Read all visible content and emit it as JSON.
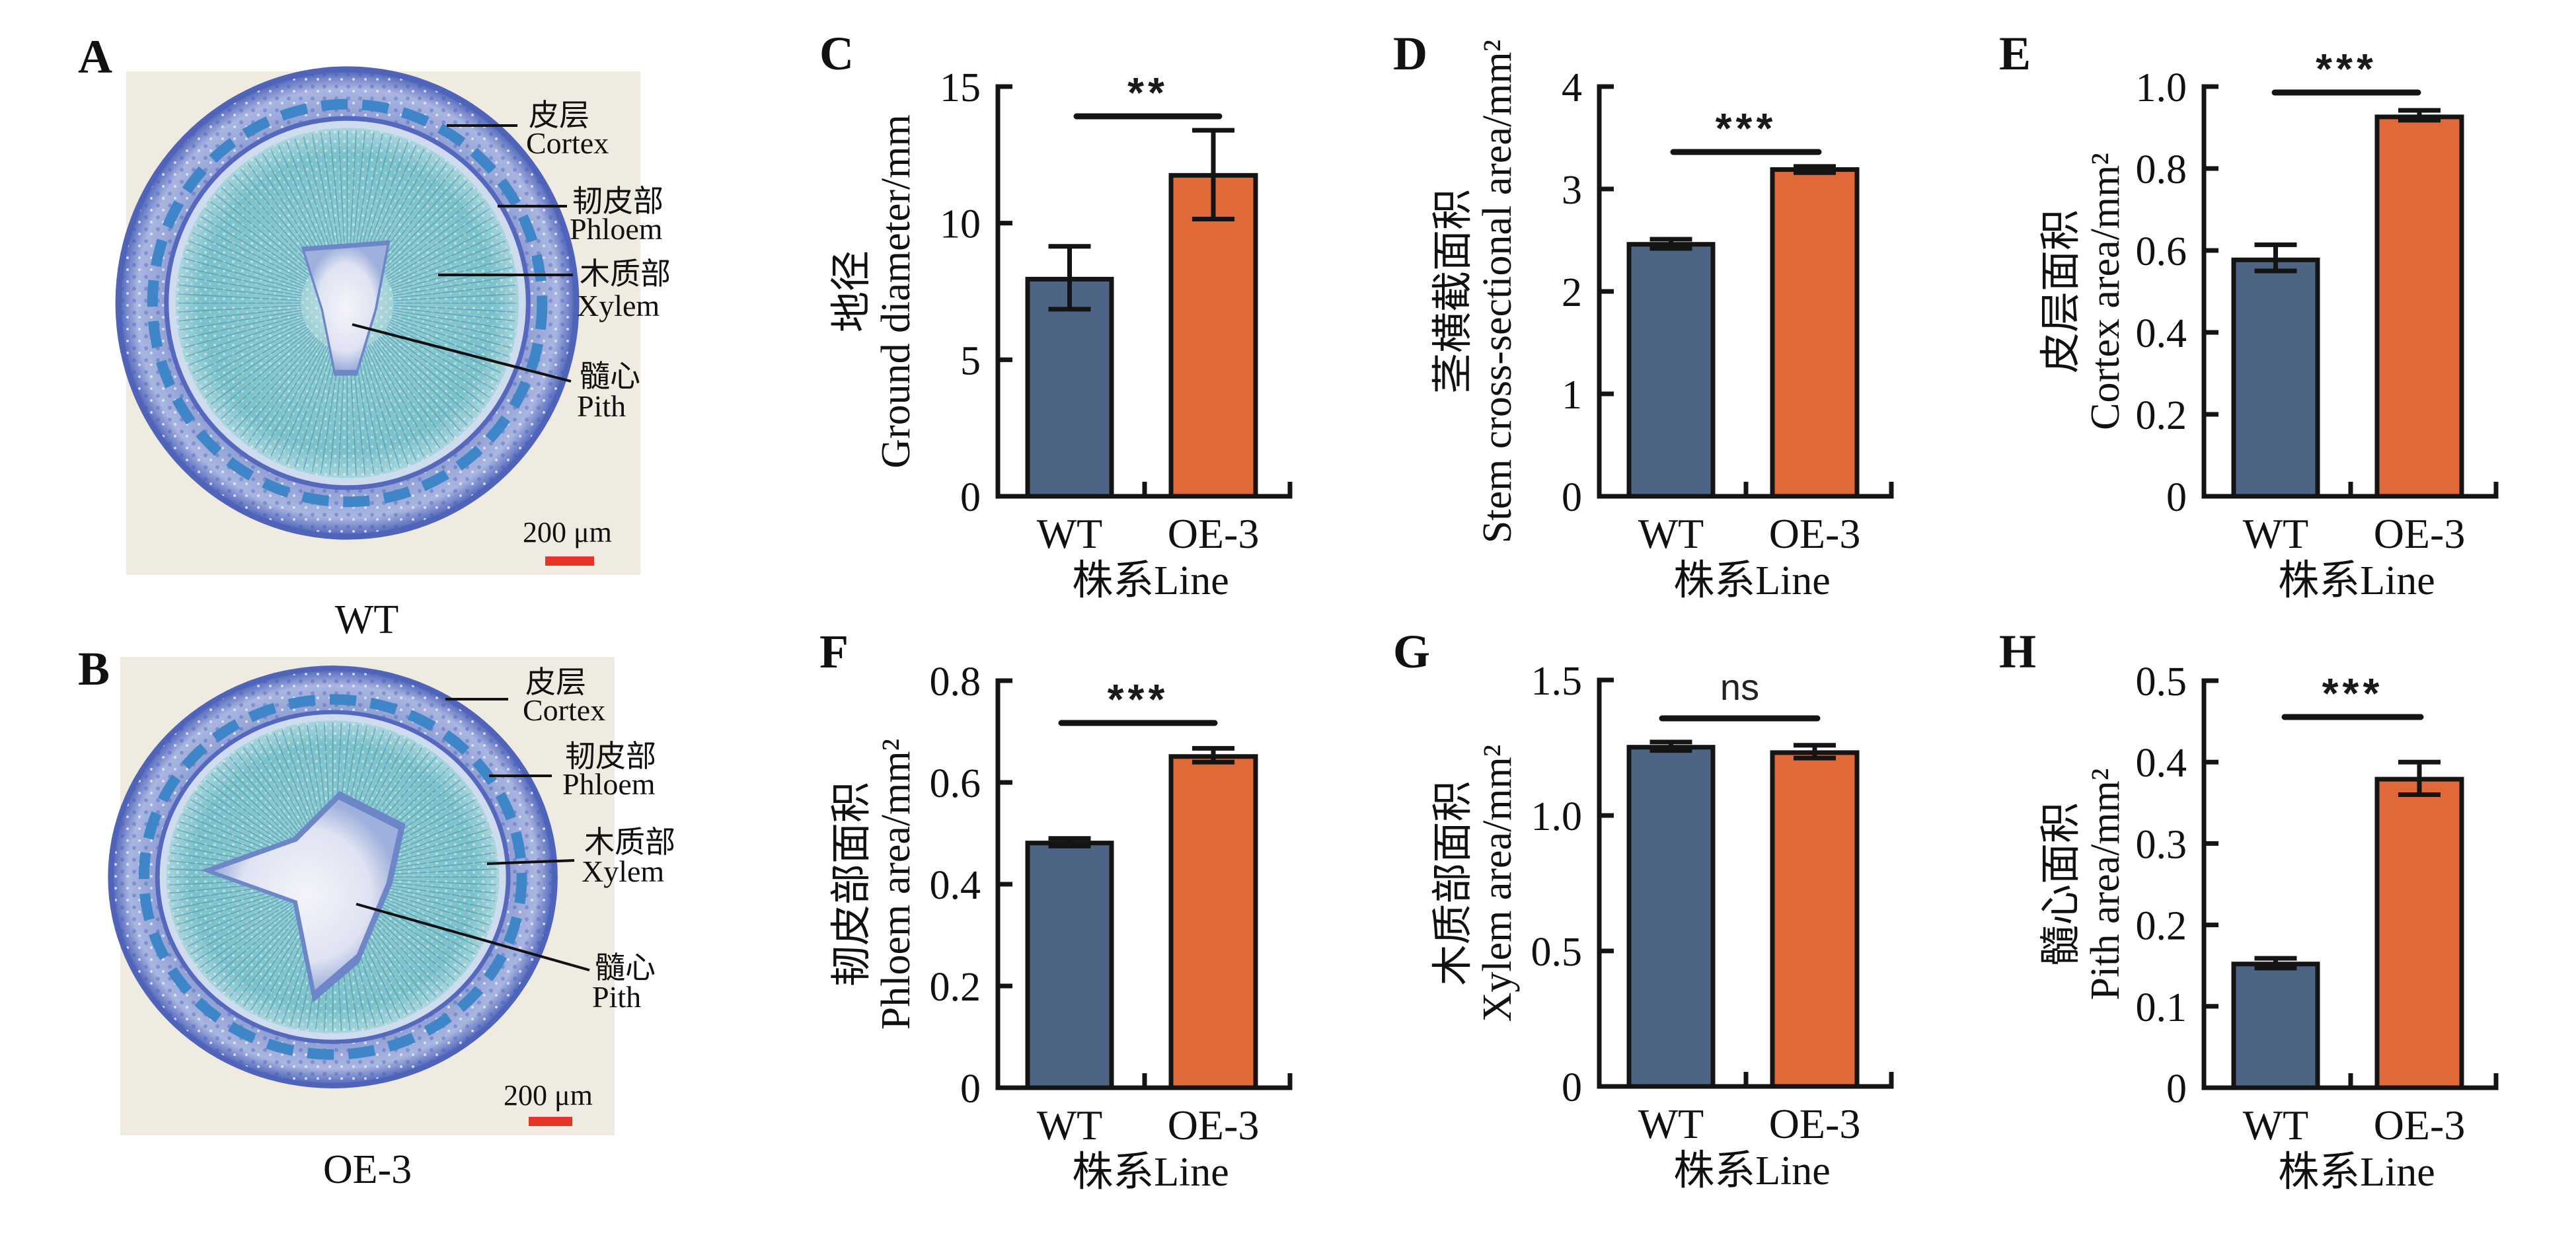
{
  "colors": {
    "wt": "#4e6484",
    "oe": "#e0693a",
    "outline": "#141414",
    "scale_bar": "#e5352a",
    "photo_bg": "#efebe0"
  },
  "micrographs": [
    {
      "panel": "A",
      "caption": "WT",
      "scale_bar": "200 μm",
      "labels": [
        {
          "zh": "皮层",
          "en": "Cortex"
        },
        {
          "zh": "韧皮部",
          "en": "Phloem"
        },
        {
          "zh": "木质部",
          "en": "Xylem"
        },
        {
          "zh": "髓心",
          "en": "Pith"
        }
      ]
    },
    {
      "panel": "B",
      "caption": "OE-3",
      "scale_bar": "200 μm",
      "labels": [
        {
          "zh": "皮层",
          "en": "Cortex"
        },
        {
          "zh": "韧皮部",
          "en": "Phloem"
        },
        {
          "zh": "木质部",
          "en": "Xylem"
        },
        {
          "zh": "髓心",
          "en": "Pith"
        }
      ]
    }
  ],
  "chart_data": [
    {
      "panel": "C",
      "type": "bar",
      "categories": [
        "WT",
        "OE-3"
      ],
      "values": [
        7.95,
        11.75
      ],
      "error_upper": [
        9.15,
        13.4
      ],
      "error_lower": [
        6.85,
        10.15
      ],
      "ylabel_zh": "地径",
      "ylabel_en": "Ground diameter/mm",
      "xlabel": "株系Line",
      "ylim": [
        0,
        15
      ],
      "yticks": [
        0,
        5,
        10,
        15
      ],
      "ytick_labels": [
        "0",
        "5",
        "10",
        "15"
      ],
      "significance": "**"
    },
    {
      "panel": "D",
      "type": "bar",
      "categories": [
        "WT",
        "OE-3"
      ],
      "values": [
        2.46,
        3.19
      ],
      "error_upper": [
        2.51,
        3.22
      ],
      "error_lower": [
        2.42,
        3.16
      ],
      "ylabel_zh": "茎横截面积",
      "ylabel_en": "Stem cross-sectional area/mm²",
      "xlabel": "株系Line",
      "ylim": [
        0,
        4
      ],
      "yticks": [
        0,
        1,
        2,
        3,
        4
      ],
      "ytick_labels": [
        "0",
        "1",
        "2",
        "3",
        "4"
      ],
      "significance": "***"
    },
    {
      "panel": "E",
      "type": "bar",
      "categories": [
        "WT",
        "OE-3"
      ],
      "values": [
        0.577,
        0.926
      ],
      "error_upper": [
        0.614,
        0.942
      ],
      "error_lower": [
        0.55,
        0.918
      ],
      "ylabel_zh": "皮层面积",
      "ylabel_en": "Cortex area/mm²",
      "xlabel": "株系Line",
      "ylim": [
        0,
        1.0
      ],
      "yticks": [
        0,
        0.2,
        0.4,
        0.6,
        0.8,
        1.0
      ],
      "ytick_labels": [
        "0",
        "0.2",
        "0.4",
        "0.6",
        "0.8",
        "1.0"
      ],
      "significance": "***"
    },
    {
      "panel": "F",
      "type": "bar",
      "categories": [
        "WT",
        "OE-3"
      ],
      "values": [
        0.481,
        0.651
      ],
      "error_upper": [
        0.49,
        0.667
      ],
      "error_lower": [
        0.475,
        0.64
      ],
      "ylabel_zh": "韧皮部面积",
      "ylabel_en": "Phloem area/mm²",
      "xlabel": "株系Line",
      "ylim": [
        0,
        0.8
      ],
      "yticks": [
        0,
        0.2,
        0.4,
        0.6,
        0.8
      ],
      "ytick_labels": [
        "0",
        "0.2",
        "0.4",
        "0.6",
        "0.8"
      ],
      "significance": "***"
    },
    {
      "panel": "G",
      "type": "bar",
      "categories": [
        "WT",
        "OE-3"
      ],
      "values": [
        1.252,
        1.232
      ],
      "error_upper": [
        1.271,
        1.259
      ],
      "error_lower": [
        1.24,
        1.212
      ],
      "ylabel_zh": "木质部面积",
      "ylabel_en": "Xylem area/mm²",
      "xlabel": "株系Line",
      "ylim": [
        0,
        1.5
      ],
      "yticks": [
        0,
        0.5,
        1.0,
        1.5
      ],
      "ytick_labels": [
        "0",
        "0.5",
        "1.0",
        "1.5"
      ],
      "significance": "ns"
    },
    {
      "panel": "H",
      "type": "bar",
      "categories": [
        "WT",
        "OE-3"
      ],
      "values": [
        0.152,
        0.379
      ],
      "error_upper": [
        0.159,
        0.4
      ],
      "error_lower": [
        0.147,
        0.36
      ],
      "ylabel_zh": "髓心面积",
      "ylabel_en": "Pith area/mm²",
      "xlabel": "株系Line",
      "ylim": [
        0,
        0.5
      ],
      "yticks": [
        0,
        0.1,
        0.2,
        0.3,
        0.4,
        0.5
      ],
      "ytick_labels": [
        "0",
        "0.1",
        "0.2",
        "0.3",
        "0.4",
        "0.5"
      ],
      "significance": "***"
    }
  ]
}
